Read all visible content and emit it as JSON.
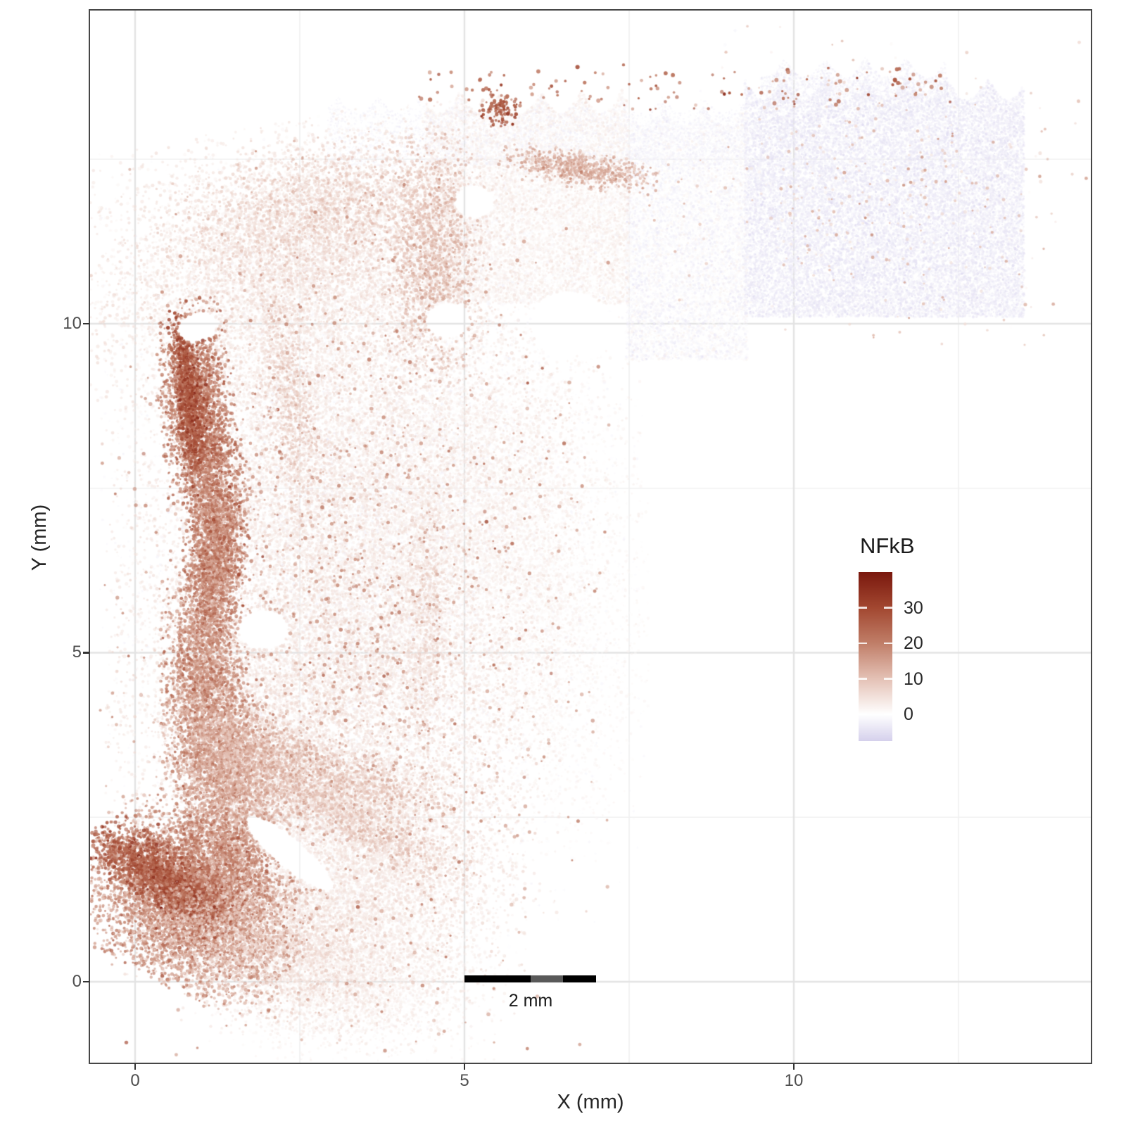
{
  "axes": {
    "x": {
      "title": "X (mm)",
      "ticks": [
        0,
        5,
        10
      ]
    },
    "y": {
      "title": "Y (mm)",
      "ticks": [
        0,
        5,
        10
      ]
    }
  },
  "legend": {
    "title": "NFkB",
    "ticks": [
      30,
      20,
      10,
      0
    ],
    "domain": [
      -7.5,
      40
    ]
  },
  "scalebar": {
    "label": "2 mm",
    "length_mm": 2,
    "segments": [
      {
        "mm": 1.0,
        "color": "#000000"
      },
      {
        "mm": 0.5,
        "color": "#595959"
      },
      {
        "mm": 0.5,
        "color": "#000000"
      }
    ]
  },
  "colors": {
    "panel_border": "#464646",
    "grid_major": "#e3e3e3",
    "grid_minor": "#f0f0f0",
    "tick_label": "#4d4d4d",
    "axis_title": "#262626",
    "scale_stops": [
      {
        "v": -7.5,
        "c": "#d5d0ec"
      },
      {
        "v": 0,
        "c": "#ffffff"
      },
      {
        "v": 10,
        "c": "#e4c1b5"
      },
      {
        "v": 20,
        "c": "#c07e68"
      },
      {
        "v": 30,
        "c": "#a24730"
      },
      {
        "v": 40,
        "c": "#7a180e"
      }
    ]
  },
  "chart_data": {
    "type": "scatter",
    "title": "",
    "xlabel": "X (mm)",
    "ylabel": "Y (mm)",
    "color_label": "NFkB",
    "xlim": [
      -0.68,
      14.51
    ],
    "ylim": [
      -1.23,
      14.76
    ],
    "grid": {
      "major_x": [
        0,
        5,
        10
      ],
      "major_y": [
        0,
        5,
        10
      ],
      "minor_x": [
        2.5,
        7.5,
        12.5
      ],
      "minor_y": [
        2.5,
        7.5,
        12.5
      ]
    },
    "legend_position": "inside-right",
    "point_units": "mm",
    "blobs": [
      {
        "k": "r",
        "x0": 9.25,
        "y0": 10.1,
        "x1": 13.5,
        "y1": 13.75,
        "wt": 0.35,
        "n": 26000,
        "v": -3.0,
        "vs": 3.0,
        "r": 1.6,
        "a": 0.55
      },
      {
        "k": "r",
        "x0": 9.5,
        "y0": 13.4,
        "x1": 12.3,
        "y1": 14.05,
        "wt": 0.3,
        "n": 2600,
        "v": -2.2,
        "vs": 2.5,
        "r": 1.4,
        "a": 0.5
      },
      {
        "k": "r",
        "x0": 7.45,
        "y0": 9.45,
        "x1": 9.3,
        "y1": 13.3,
        "wt": 0.3,
        "n": 9000,
        "v": -0.8,
        "vs": 3.5,
        "r": 1.7,
        "a": 0.5
      },
      {
        "k": "r",
        "x0": 4.4,
        "y0": 10.3,
        "x1": 7.5,
        "y1": 13.55,
        "wt": 0.35,
        "n": 12000,
        "v": 1.8,
        "vs": 3.5,
        "r": 1.8,
        "a": 0.5
      },
      {
        "k": "r",
        "x0": 2.9,
        "y0": 12.4,
        "x1": 9.3,
        "y1": 13.45,
        "wt": 0.25,
        "n": 4200,
        "v": -2.0,
        "vs": 1.8,
        "r": 1.3,
        "a": 0.45
      },
      {
        "k": "r",
        "x0": 4.3,
        "y0": 13.25,
        "x1": 12.4,
        "y1": 14.0,
        "wt": 0.2,
        "n": 150,
        "v": 23,
        "vs": 10,
        "r": 2.3,
        "a": 0.85
      },
      {
        "k": "g",
        "x": 11.3,
        "y": 12.0,
        "sx": 1.6,
        "sy": 1.1,
        "rot": 0,
        "n": 380,
        "v": 8,
        "vs": 9,
        "r": 1.9,
        "a": 0.8
      },
      {
        "k": "g",
        "x": 2.5,
        "y": 10.9,
        "sx": 1.5,
        "sy": 0.95,
        "rot": 10,
        "n": 9000,
        "v": 4.5,
        "vs": 4.5,
        "r": 1.9,
        "a": 0.5
      },
      {
        "k": "g",
        "x": 3.2,
        "y": 7.6,
        "sx": 1.55,
        "sy": 1.5,
        "rot": 0,
        "n": 13000,
        "v": 4,
        "vs": 4.5,
        "r": 1.9,
        "a": 0.5
      },
      {
        "k": "g",
        "x": 5.2,
        "y": 7.2,
        "sx": 1.1,
        "sy": 1.5,
        "rot": 0,
        "n": 6500,
        "v": 2.2,
        "vs": 3,
        "r": 1.9,
        "a": 0.45
      },
      {
        "k": "g",
        "x": 3.0,
        "y": 4.2,
        "sx": 1.5,
        "sy": 1.4,
        "rot": 0,
        "n": 12000,
        "v": 4.5,
        "vs": 4.5,
        "r": 1.9,
        "a": 0.5
      },
      {
        "k": "g",
        "x": 3.3,
        "y": 1.5,
        "sx": 1.15,
        "sy": 1.0,
        "rot": 0,
        "n": 8000,
        "v": 4,
        "vs": 4,
        "r": 1.9,
        "a": 0.5
      },
      {
        "k": "g",
        "x": 3.3,
        "y": -0.05,
        "sx": 0.95,
        "sy": 0.5,
        "rot": 0,
        "n": 3000,
        "v": 2.5,
        "vs": 3,
        "r": 1.8,
        "a": 0.45
      },
      {
        "k": "g",
        "x": 6.3,
        "y": 5.2,
        "sx": 0.65,
        "sy": 1.5,
        "rot": 0,
        "n": 3000,
        "v": 1.8,
        "vs": 2.5,
        "r": 1.8,
        "a": 0.4
      },
      {
        "k": "g",
        "x": 4.55,
        "y": 11.0,
        "sx": 0.35,
        "sy": 0.85,
        "rot": 0,
        "n": 1600,
        "v": 11,
        "vs": 7,
        "r": 1.9,
        "a": 0.6
      },
      {
        "k": "g",
        "x": 2.8,
        "y": 11.7,
        "sx": 1.1,
        "sy": 0.5,
        "rot": 12,
        "n": 2200,
        "v": 8,
        "vs": 6,
        "r": 1.9,
        "a": 0.55
      },
      {
        "k": "g",
        "x": 3.6,
        "y": 6.6,
        "sx": 1.8,
        "sy": 2.6,
        "rot": 0,
        "n": 5000,
        "v": -2.0,
        "vs": 1.6,
        "r": 1.5,
        "a": 0.35
      },
      {
        "k": "g",
        "x": 3.3,
        "y": 5.6,
        "sx": 1.7,
        "sy": 3.1,
        "rot": 0,
        "n": 1600,
        "v": 19,
        "vs": 9,
        "r": 2.1,
        "a": 0.65
      },
      {
        "k": "g",
        "x": 0.95,
        "y": 8.6,
        "sx": 0.25,
        "sy": 0.78,
        "rot": 6,
        "n": 2800,
        "v": 21,
        "vs": 10,
        "r": 2.0,
        "a": 0.75
      },
      {
        "k": "g",
        "x": 0.82,
        "y": 8.95,
        "sx": 0.1,
        "sy": 0.55,
        "rot": 6,
        "n": 900,
        "v": 28,
        "vs": 8,
        "r": 2.0,
        "a": 0.8
      },
      {
        "k": "g",
        "x": 1.22,
        "y": 6.55,
        "sx": 0.22,
        "sy": 0.75,
        "rot": -4,
        "n": 2600,
        "v": 19,
        "vs": 10,
        "r": 2.0,
        "a": 0.75
      },
      {
        "k": "g",
        "x": 1.05,
        "y": 4.5,
        "sx": 0.3,
        "sy": 0.8,
        "rot": 0,
        "n": 2400,
        "v": 17,
        "vs": 9,
        "r": 2.0,
        "a": 0.7
      },
      {
        "k": "g",
        "x": 1.35,
        "y": 3.4,
        "sx": 0.35,
        "sy": 0.45,
        "rot": -20,
        "n": 1500,
        "v": 15,
        "vs": 9,
        "r": 2.0,
        "a": 0.7
      },
      {
        "k": "g",
        "x": 2.6,
        "y": 3.3,
        "sx": 1.05,
        "sy": 0.22,
        "rot": -18,
        "n": 1600,
        "v": 10,
        "vs": 7,
        "r": 1.9,
        "a": 0.6
      },
      {
        "k": "g",
        "x": 3.2,
        "y": 2.5,
        "sx": 0.95,
        "sy": 0.18,
        "rot": -28,
        "n": 1200,
        "v": 9,
        "vs": 6,
        "r": 1.9,
        "a": 0.55
      },
      {
        "k": "g",
        "x": 0.85,
        "y": 1.15,
        "sx": 0.78,
        "sy": 0.55,
        "rot": -28,
        "n": 6000,
        "v": 17,
        "vs": 10,
        "r": 2.0,
        "a": 0.7
      },
      {
        "k": "g",
        "x": 0.42,
        "y": 1.6,
        "sx": 0.55,
        "sy": 0.22,
        "rot": -33,
        "n": 1900,
        "v": 26,
        "vs": 8,
        "r": 2.1,
        "a": 0.8
      },
      {
        "k": "g",
        "x": 1.35,
        "y": 1.95,
        "sx": 0.4,
        "sy": 0.5,
        "rot": 25,
        "n": 1600,
        "v": 19,
        "vs": 9,
        "r": 2.0,
        "a": 0.7
      },
      {
        "k": "g",
        "x": 2.0,
        "y": 0.55,
        "sx": 0.9,
        "sy": 0.5,
        "rot": -15,
        "n": 2400,
        "v": 7,
        "vs": 5,
        "r": 1.9,
        "a": 0.5
      },
      {
        "k": "g",
        "x": 1.75,
        "y": 2.9,
        "sx": 0.45,
        "sy": 0.45,
        "rot": 0,
        "n": 1400,
        "v": 12,
        "vs": 7,
        "r": 1.9,
        "a": 0.6
      },
      {
        "k": "g",
        "x": 5.55,
        "y": 13.25,
        "sx": 0.14,
        "sy": 0.14,
        "rot": 0,
        "n": 130,
        "v": 26,
        "vs": 7,
        "r": 2.0,
        "a": 0.85
      },
      {
        "k": "g",
        "x": 6.75,
        "y": 12.35,
        "sx": 0.55,
        "sy": 0.13,
        "rot": -8,
        "n": 800,
        "v": 13,
        "vs": 7,
        "r": 1.9,
        "a": 0.65
      },
      {
        "k": "g",
        "x": 2.35,
        "y": 8.9,
        "sx": 0.18,
        "sy": 0.9,
        "rot": 8,
        "n": 900,
        "v": 9,
        "vs": 5,
        "r": 1.8,
        "a": 0.5
      },
      {
        "k": "g",
        "x": 4.4,
        "y": 5.6,
        "sx": 0.16,
        "sy": 0.95,
        "rot": 0,
        "n": 700,
        "v": 7,
        "vs": 5,
        "r": 1.8,
        "a": 0.45
      }
    ],
    "voids": [
      {
        "x": 1.95,
        "y": 5.35,
        "rx": 0.38,
        "ry": 0.3,
        "rot": 0
      },
      {
        "x": 2.35,
        "y": 1.95,
        "rx": 0.85,
        "ry": 0.22,
        "rot": -40
      },
      {
        "x": 0.95,
        "y": 9.95,
        "rx": 0.3,
        "ry": 0.22,
        "rot": 20
      },
      {
        "x": 4.75,
        "y": 10.05,
        "rx": 0.33,
        "ry": 0.27,
        "rot": 0
      },
      {
        "x": 6.6,
        "y": 10.0,
        "rx": 0.6,
        "ry": 0.5,
        "rot": 0
      },
      {
        "x": 5.15,
        "y": 11.85,
        "rx": 0.3,
        "ry": 0.25,
        "rot": 0
      }
    ]
  }
}
